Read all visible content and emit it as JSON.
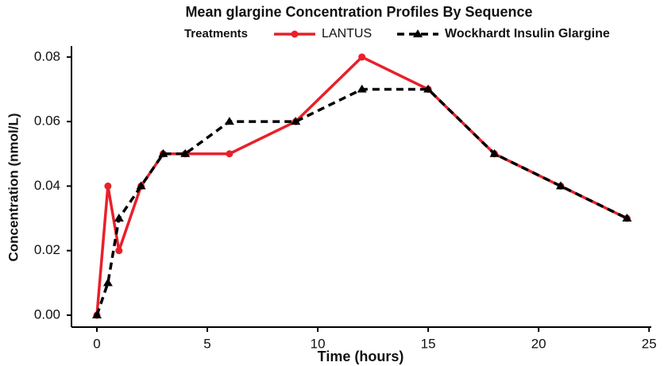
{
  "chart_data": {
    "type": "line",
    "title": "Mean glargine Concentration Profiles By Sequence",
    "legend_title": "Treatments",
    "x_label": "Time (hours)",
    "y_label": "Concentration (nmol/L)",
    "x": [
      0,
      0.5,
      1,
      2,
      3,
      4,
      6,
      9,
      12,
      15,
      18,
      21,
      24
    ],
    "series": [
      {
        "name": "LANTUS",
        "color": "#e8202a",
        "marker": "circle",
        "dash": false,
        "values": [
          0,
          0.04,
          0.02,
          0.04,
          0.05,
          0.05,
          0.05,
          0.06,
          0.08,
          0.07,
          0.05,
          0.04,
          0.03
        ]
      },
      {
        "name": "Wockhardt Insulin Glargine",
        "color": "#000000",
        "marker": "triangle",
        "dash": true,
        "values": [
          0,
          0.01,
          0.03,
          0.04,
          0.05,
          0.05,
          0.06,
          0.06,
          0.07,
          0.07,
          0.05,
          0.04,
          0.03
        ]
      }
    ],
    "xlim": [
      -1.15,
      25.1
    ],
    "ylim": [
      -0.0037,
      0.0834
    ],
    "xticks": [
      0,
      5,
      10,
      15,
      20,
      25
    ],
    "yticks": [
      {
        "value": 0,
        "label": "0.00"
      },
      {
        "value": 0.02,
        "label": "0.02"
      },
      {
        "value": 0.04,
        "label": "0.04"
      },
      {
        "value": 0.06,
        "label": "0.06"
      },
      {
        "value": 0.08,
        "label": "0.08"
      }
    ]
  }
}
